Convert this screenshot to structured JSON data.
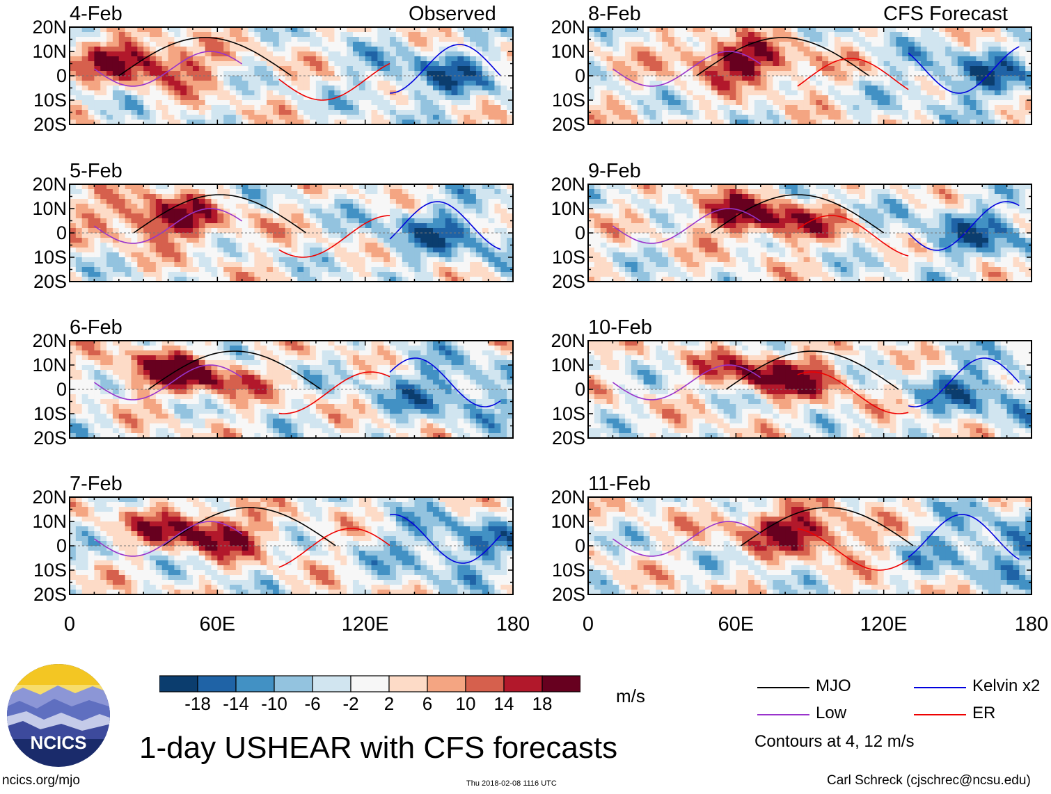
{
  "chart_data": {
    "type": "heatmap",
    "title": "1-day USHEAR with CFS forecasts",
    "units": "m/s",
    "x_ticks": [
      "0",
      "60E",
      "120E",
      "180"
    ],
    "y_ticks": [
      "20N",
      "10N",
      "0",
      "10S",
      "20S"
    ],
    "xlim": [
      0,
      180
    ],
    "ylim": [
      -20,
      20
    ],
    "columns": [
      {
        "header": "Observed",
        "panels": [
          "4-Feb",
          "5-Feb",
          "6-Feb",
          "7-Feb"
        ]
      },
      {
        "header": "CFS Forecast",
        "panels": [
          "8-Feb",
          "9-Feb",
          "10-Feb",
          "11-Feb"
        ]
      }
    ],
    "colorbar": {
      "labels": [
        "-18",
        "-14",
        "-10",
        "-6",
        "-2",
        "2",
        "6",
        "10",
        "14",
        "18"
      ],
      "colors": [
        "#0b3d6e",
        "#1f63a6",
        "#4291c4",
        "#93c3df",
        "#d1e5f0",
        "#f7f7f7",
        "#fddbc7",
        "#f4a582",
        "#d6604d",
        "#b2182b",
        "#67001f"
      ]
    },
    "legend": [
      {
        "label": "MJO",
        "color": "#000000"
      },
      {
        "label": "Kelvin x2",
        "color": "#0000dd"
      },
      {
        "label": "Low",
        "color": "#9933cc"
      },
      {
        "label": "ER",
        "color": "#ee0000"
      }
    ],
    "contour_note": "Contours at 4, 12 m/s"
  },
  "footer": {
    "logo_text": "NCICS",
    "url": "ncics.org/mjo",
    "timestamp": "Thu 2018-02-08 1116 UTC",
    "credit": "Carl Schreck (cjschrec@ncsu.edu)"
  }
}
